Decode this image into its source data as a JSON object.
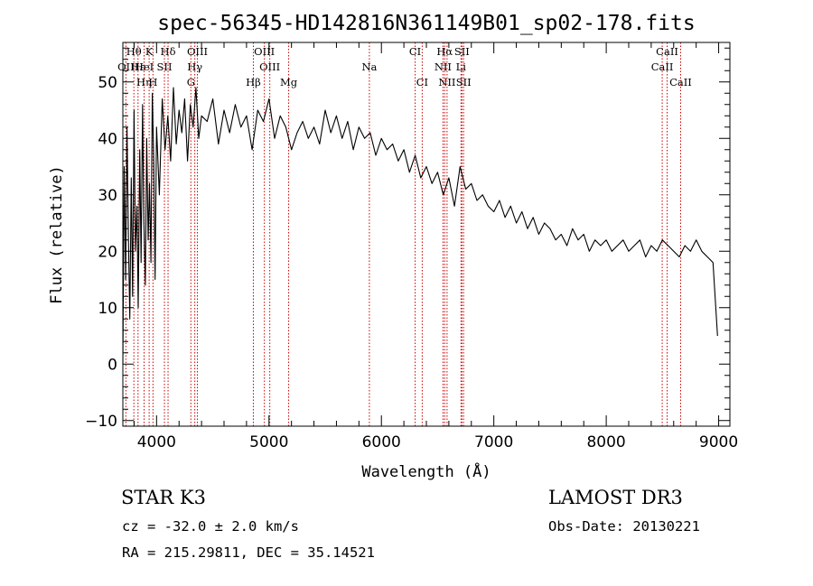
{
  "chart_data": {
    "type": "line",
    "title": "spec-56345-HD142816N361149B01_sp02-178.fits",
    "xlabel": "Wavelength (Å)",
    "ylabel": "Flux (relative)",
    "xlim": [
      3700,
      9100
    ],
    "ylim": [
      -11,
      57
    ],
    "x_ticks": [
      4000,
      5000,
      6000,
      7000,
      8000,
      9000
    ],
    "y_ticks": [
      -10,
      0,
      10,
      20,
      30,
      40,
      50
    ],
    "series": [
      {
        "name": "spectrum",
        "x": [
          3700,
          3712,
          3725,
          3737,
          3750,
          3762,
          3775,
          3787,
          3800,
          3812,
          3825,
          3837,
          3850,
          3862,
          3875,
          3887,
          3900,
          3912,
          3925,
          3937,
          3950,
          3962,
          3975,
          3987,
          4000,
          4025,
          4050,
          4075,
          4100,
          4125,
          4150,
          4175,
          4200,
          4225,
          4250,
          4275,
          4300,
          4325,
          4350,
          4375,
          4400,
          4450,
          4500,
          4550,
          4600,
          4650,
          4700,
          4750,
          4800,
          4850,
          4900,
          4950,
          5000,
          5050,
          5100,
          5150,
          5200,
          5250,
          5300,
          5350,
          5400,
          5450,
          5500,
          5550,
          5600,
          5650,
          5700,
          5750,
          5800,
          5850,
          5900,
          5950,
          6000,
          6050,
          6100,
          6150,
          6200,
          6250,
          6300,
          6350,
          6400,
          6450,
          6500,
          6550,
          6600,
          6650,
          6700,
          6750,
          6800,
          6850,
          6900,
          6950,
          7000,
          7050,
          7100,
          7150,
          7200,
          7250,
          7300,
          7350,
          7400,
          7450,
          7500,
          7550,
          7600,
          7650,
          7700,
          7750,
          7800,
          7850,
          7900,
          7950,
          8000,
          8050,
          8100,
          8150,
          8200,
          8250,
          8300,
          8350,
          8400,
          8450,
          8500,
          8550,
          8600,
          8650,
          8700,
          8750,
          8800,
          8850,
          8900,
          8950,
          8990
        ],
        "values": [
          0,
          35,
          15,
          42,
          22,
          8,
          33,
          12,
          45,
          20,
          28,
          10,
          38,
          18,
          46,
          25,
          14,
          40,
          22,
          32,
          18,
          48,
          36,
          15,
          42,
          30,
          47,
          38,
          44,
          36,
          49,
          39,
          45,
          41,
          47,
          36,
          46,
          42,
          49,
          40,
          44,
          43,
          47,
          39,
          45,
          41,
          46,
          42,
          44,
          38,
          45,
          43,
          47,
          40,
          44,
          42,
          38,
          41,
          43,
          40,
          42,
          39,
          45,
          41,
          44,
          40,
          43,
          38,
          42,
          40,
          41,
          37,
          40,
          38,
          39,
          36,
          38,
          34,
          37,
          33,
          35,
          32,
          34,
          30,
          33,
          28,
          35,
          31,
          32,
          29,
          30,
          28,
          27,
          29,
          26,
          28,
          25,
          27,
          24,
          26,
          23,
          25,
          24,
          22,
          23,
          21,
          24,
          22,
          23,
          20,
          22,
          21,
          22,
          20,
          21,
          22,
          20,
          21,
          22,
          19,
          21,
          20,
          22,
          21,
          20,
          19,
          21,
          20,
          22,
          20,
          19,
          18,
          5
        ]
      }
    ],
    "line_labels": [
      {
        "label": "Hθ",
        "wavelength": 3798,
        "row": 1
      },
      {
        "label": "K",
        "wavelength": 3934,
        "row": 1
      },
      {
        "label": "Hδ",
        "wavelength": 4102,
        "row": 1
      },
      {
        "label": "OIII",
        "wavelength": 4363,
        "row": 1
      },
      {
        "label": "OIII",
        "wavelength": 4959,
        "row": 1
      },
      {
        "label": "CI",
        "wavelength": 6300,
        "row": 1
      },
      {
        "label": "Hα",
        "wavelength": 6563,
        "row": 1
      },
      {
        "label": "SII",
        "wavelength": 6716,
        "row": 1
      },
      {
        "label": "CaII",
        "wavelength": 8542,
        "row": 1
      },
      {
        "label": "OII",
        "wavelength": 3727,
        "row": 2
      },
      {
        "label": "Hε",
        "wavelength": 3835,
        "row": 2
      },
      {
        "label": "HeI",
        "wavelength": 3889,
        "row": 2
      },
      {
        "label": "SII",
        "wavelength": 4070,
        "row": 2
      },
      {
        "label": "Hγ",
        "wavelength": 4340,
        "row": 2
      },
      {
        "label": "OIII",
        "wavelength": 5007,
        "row": 2
      },
      {
        "label": "Na",
        "wavelength": 5893,
        "row": 2
      },
      {
        "label": "NII",
        "wavelength": 6548,
        "row": 2
      },
      {
        "label": "Li",
        "wavelength": 6708,
        "row": 2
      },
      {
        "label": "CaII",
        "wavelength": 8498,
        "row": 2
      },
      {
        "label": "Hη",
        "wavelength": 3889,
        "row": 3
      },
      {
        "label": "H",
        "wavelength": 3968,
        "row": 3
      },
      {
        "label": "G",
        "wavelength": 4305,
        "row": 3
      },
      {
        "label": "Hβ",
        "wavelength": 4861,
        "row": 3
      },
      {
        "label": "Mg",
        "wavelength": 5175,
        "row": 3
      },
      {
        "label": "CI",
        "wavelength": 6363,
        "row": 3
      },
      {
        "label": "NII",
        "wavelength": 6584,
        "row": 3
      },
      {
        "label": "SII",
        "wavelength": 6731,
        "row": 3
      },
      {
        "label": "CaII",
        "wavelength": 8662,
        "row": 3
      }
    ],
    "line_color": "#cc0000"
  },
  "info": {
    "class_text": "STAR    K3",
    "survey": "LAMOST DR3",
    "redshift": "cz = -32.0 ± 2.0 km/s",
    "obs_date": "Obs-Date: 20130221",
    "coords": "RA = 215.29811, DEC =  35.14521"
  }
}
